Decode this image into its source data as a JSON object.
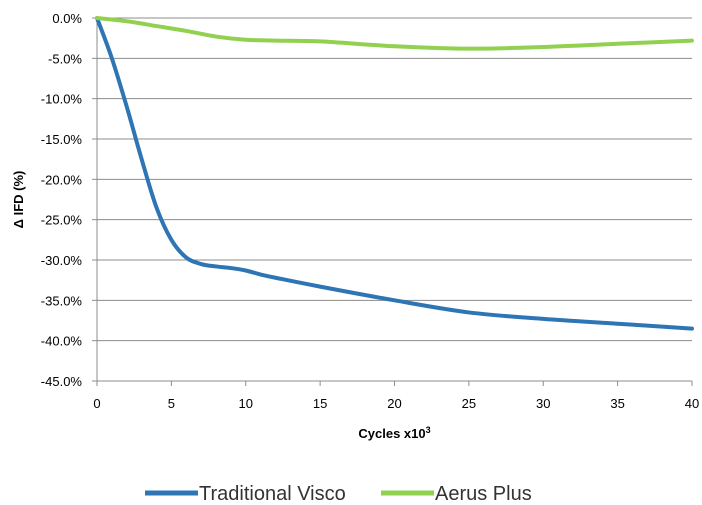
{
  "chart_data": {
    "type": "line",
    "xlabel": "Cycles x10",
    "xlabel_sup": "3",
    "ylabel": "Δ IFD (%)",
    "xlim": [
      0,
      40
    ],
    "ylim": [
      -45,
      0
    ],
    "x_ticks": [
      0,
      5,
      10,
      15,
      20,
      25,
      30,
      35,
      40
    ],
    "y_ticks": [
      0,
      -5,
      -10,
      -15,
      -20,
      -25,
      -30,
      -35,
      -40,
      -45
    ],
    "y_tick_labels": [
      "0.0%",
      "-5.0%",
      "-10.0%",
      "-15.0%",
      "-20.0%",
      "-25.0%",
      "-30.0%",
      "-35.0%",
      "-40.0%",
      "-45.0%"
    ],
    "grid": "horizontal",
    "legend_position": "bottom",
    "series": [
      {
        "name": "Traditional Visco",
        "color": "#2E75B6",
        "points": [
          [
            0,
            0
          ],
          [
            1,
            -5
          ],
          [
            2,
            -11
          ],
          [
            3,
            -17.5
          ],
          [
            4,
            -23.5
          ],
          [
            5,
            -27.5
          ],
          [
            6,
            -29.7
          ],
          [
            7,
            -30.5
          ],
          [
            8,
            -30.8
          ],
          [
            9,
            -31
          ],
          [
            10,
            -31.3
          ],
          [
            11,
            -31.8
          ],
          [
            12,
            -32.2
          ],
          [
            15,
            -33.3
          ],
          [
            20,
            -35
          ],
          [
            25,
            -36.5
          ],
          [
            30,
            -37.3
          ],
          [
            35,
            -37.9
          ],
          [
            40,
            -38.5
          ]
        ]
      },
      {
        "name": "Aerus Plus",
        "color": "#92D050",
        "points": [
          [
            0,
            0
          ],
          [
            2,
            -0.4
          ],
          [
            4,
            -1
          ],
          [
            6,
            -1.6
          ],
          [
            8,
            -2.3
          ],
          [
            10,
            -2.7
          ],
          [
            12,
            -2.8
          ],
          [
            15,
            -2.9
          ],
          [
            20,
            -3.5
          ],
          [
            25,
            -3.8
          ],
          [
            30,
            -3.6
          ],
          [
            35,
            -3.2
          ],
          [
            40,
            -2.8
          ]
        ]
      }
    ]
  }
}
